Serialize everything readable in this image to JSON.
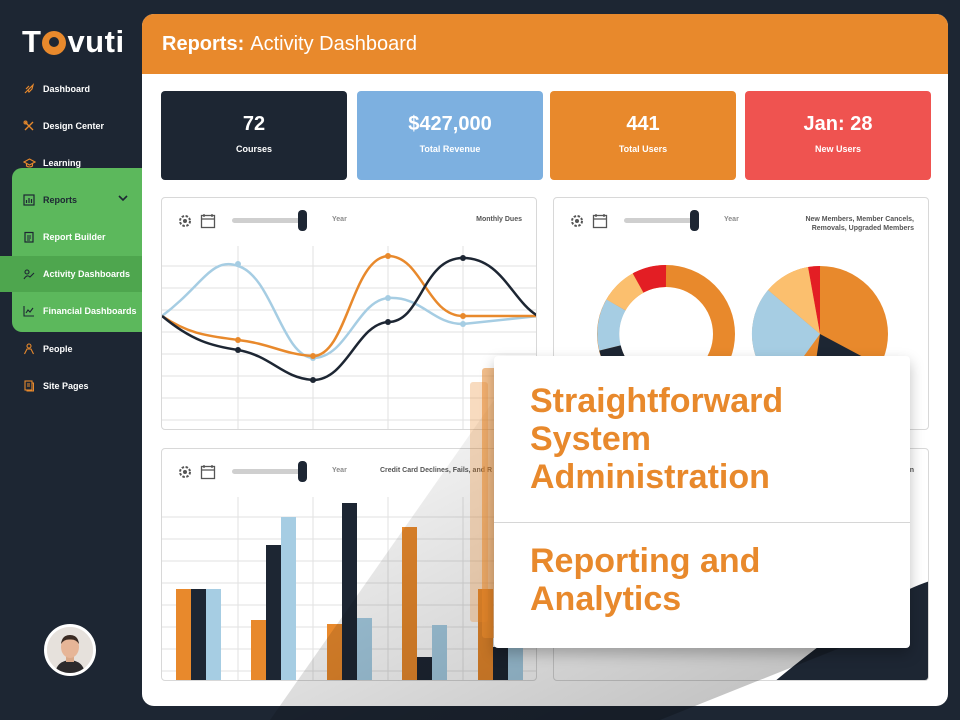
{
  "logo": {
    "text_pre": "T",
    "text_post": "vuti"
  },
  "sidebar": {
    "items": [
      {
        "label": "Dashboard",
        "icon": "rocket-icon"
      },
      {
        "label": "Design Center",
        "icon": "tools-icon"
      },
      {
        "label": "Learning",
        "icon": "graduation-cap-icon"
      },
      {
        "label": "Reports",
        "icon": "report-icon"
      },
      {
        "label": "Report Builder",
        "icon": "clipboard-icon"
      },
      {
        "label": "Activity Dashboards",
        "icon": "activity-icon"
      },
      {
        "label": "Financial Dashboards",
        "icon": "line-chart-icon"
      },
      {
        "label": "People",
        "icon": "people-icon"
      },
      {
        "label": "Site Pages",
        "icon": "pages-icon"
      }
    ]
  },
  "header": {
    "section": "Reports:",
    "title": "Activity Dashboard"
  },
  "stats": [
    {
      "value": "72",
      "label": "Courses",
      "color": "#1d2633"
    },
    {
      "value": "$427,000",
      "label": "Total Revenue",
      "color": "#7db0e0"
    },
    {
      "value": "441",
      "label": "Total Users",
      "color": "#e8892c"
    },
    {
      "value": "Jan: 28",
      "label": "New Users",
      "color": "#ef5350"
    }
  ],
  "panels": {
    "monthly_dues": {
      "year_label": "Year",
      "title": "Monthly Dues"
    },
    "members": {
      "year_label": "Year",
      "title_line1": "New Members, Member Cancels,",
      "title_line2": "Removals, Upgraded Members"
    },
    "credit_card": {
      "year_label": "Year",
      "title": "Credit Card Declines, Fails, and R"
    },
    "fourth": {
      "title": "n"
    }
  },
  "colors": {
    "orange": "#e8892c",
    "navy": "#1d2633",
    "lightblue": "#a6cde3",
    "red": "#e31e24",
    "peach": "#fbbf6e",
    "green": "#5cb85c"
  },
  "callout": {
    "line1": "Straightforward",
    "line2": "System",
    "line3": "Administration",
    "line4": "Reporting and",
    "line5": "Analytics"
  }
}
